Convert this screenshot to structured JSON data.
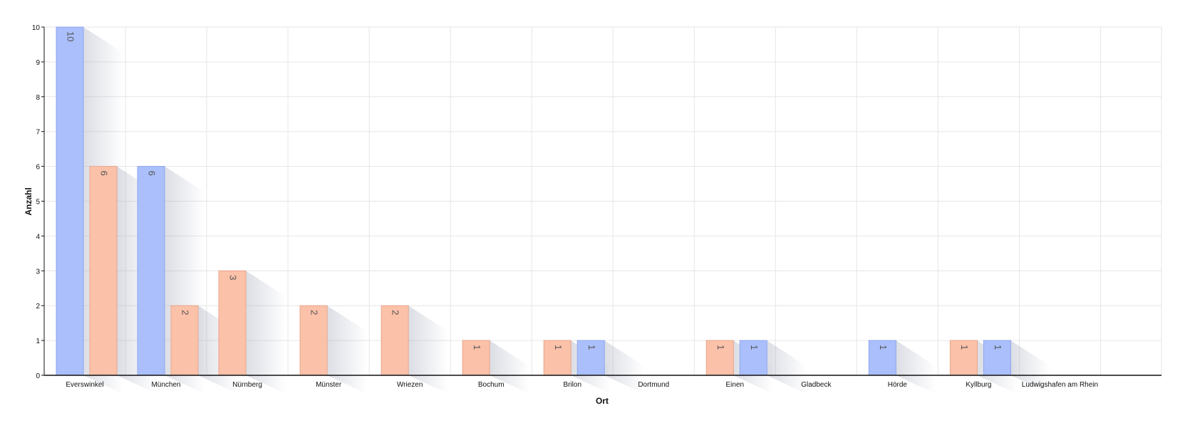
{
  "chart_data": {
    "type": "bar",
    "xlabel": "Ort",
    "ylabel": "Anzahl",
    "ylim": [
      0,
      10
    ],
    "yticks": [
      0,
      1,
      2,
      3,
      4,
      5,
      6,
      7,
      8,
      9,
      10
    ],
    "grid": true,
    "legend": "none",
    "series_colors": {
      "blue": "#aabffb",
      "orange": "#fbc1a9"
    },
    "categories": [
      {
        "label": "Everswinkel",
        "bars": [
          {
            "color": "blue",
            "value": 10
          },
          {
            "color": "orange",
            "value": 6
          }
        ]
      },
      {
        "label": "München",
        "bars": [
          {
            "color": "blue",
            "value": 6
          },
          {
            "color": "orange",
            "value": 2
          }
        ]
      },
      {
        "label": "Nürnberg",
        "bars": [
          {
            "color": "orange",
            "value": 3
          }
        ]
      },
      {
        "label": "Münster",
        "bars": [
          {
            "color": "orange",
            "value": 2
          }
        ]
      },
      {
        "label": "Wriezen",
        "bars": [
          {
            "color": "orange",
            "value": 2
          }
        ]
      },
      {
        "label": "Bochum",
        "bars": [
          {
            "color": "orange",
            "value": 1
          }
        ]
      },
      {
        "label": "Brilon",
        "bars": [
          {
            "color": "orange",
            "value": 1
          },
          {
            "color": "blue",
            "value": 1
          }
        ]
      },
      {
        "label": "Dortmund",
        "bars": []
      },
      {
        "label": "Einen",
        "bars": [
          {
            "color": "orange",
            "value": 1
          },
          {
            "color": "blue",
            "value": 1
          }
        ]
      },
      {
        "label": "Gladbeck",
        "bars": []
      },
      {
        "label": "Hörde",
        "bars": [
          {
            "color": "blue",
            "value": 1
          }
        ]
      },
      {
        "label": "Kyllburg",
        "bars": [
          {
            "color": "orange",
            "value": 1
          },
          {
            "color": "blue",
            "value": 1
          }
        ]
      },
      {
        "label": "Ludwigshafen am Rhein",
        "bars": []
      }
    ]
  }
}
